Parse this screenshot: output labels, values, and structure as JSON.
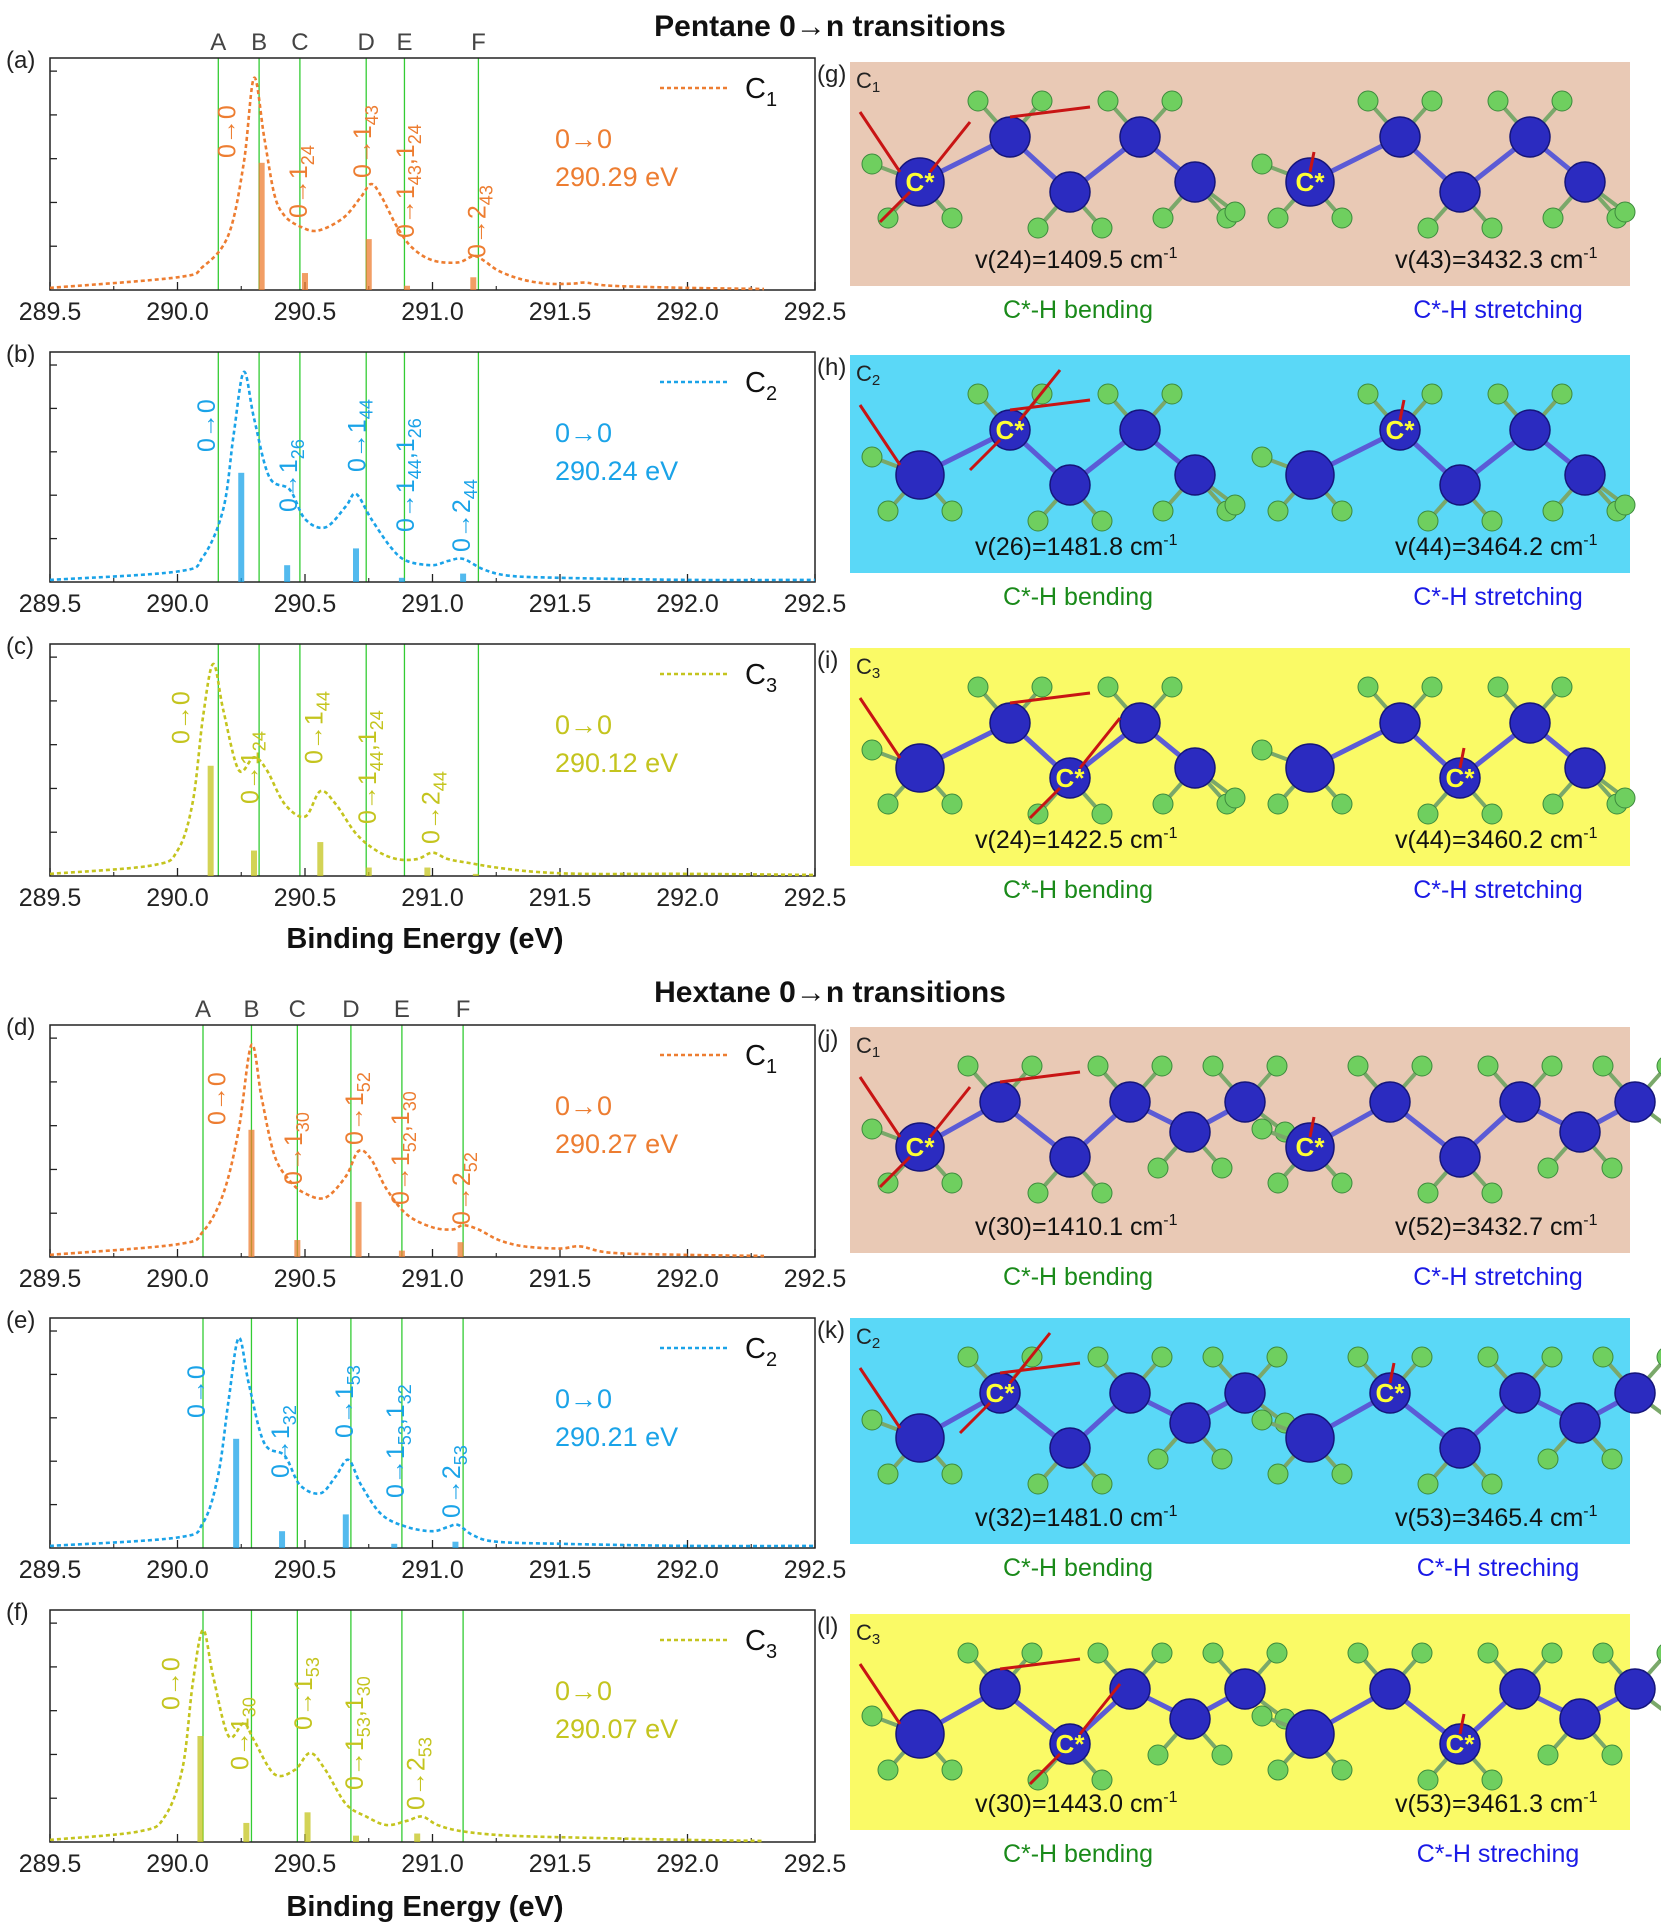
{
  "figure": {
    "pentane_title": "Pentane 0→n transitions",
    "hexane_title": "Hextane 0→n transitions",
    "xlabel": "Binding Energy (eV)",
    "line_letters": [
      "A",
      "B",
      "C",
      "D",
      "E",
      "F"
    ],
    "colors": {
      "C1": "#ed7d31",
      "C2": "#1aa3e8",
      "C3": "#c4c41e",
      "grid_line": "#33cc33",
      "bg_C1": "#e9c9b5",
      "bg_C2": "#5ad8f7",
      "bg_C3": "#fafa66",
      "bending_label": "#1a8a1a",
      "stretching_label": "#1a1ae6",
      "carbon": "#2b2bc0",
      "hydrogen": "#6fcf5f",
      "arrow": "#c81414"
    }
  },
  "chart_data": [
    {
      "type": "line",
      "panel": "(a)",
      "molecule": "Pentane",
      "site": "C1",
      "legend": {
        "main": "C",
        "sub": "1"
      },
      "xlim": [
        289.5,
        292.5
      ],
      "xticks": [
        "289.5",
        "290.0",
        "290.5",
        "291.0",
        "291.5",
        "292.0",
        "292.5"
      ],
      "peak_label": "0→0",
      "peak_energy": "290.29 eV",
      "vlines": [
        290.16,
        290.32,
        290.48,
        290.74,
        290.89,
        291.18
      ],
      "curve_x": [
        289.5,
        290.0,
        290.1,
        290.2,
        290.26,
        290.3,
        290.34,
        290.38,
        290.42,
        290.48,
        290.55,
        290.65,
        290.72,
        290.76,
        290.8,
        290.86,
        290.92,
        291.0,
        291.1,
        291.16,
        291.2,
        291.26,
        291.35,
        291.45,
        291.55,
        291.6,
        291.7,
        292.0,
        292.3
      ],
      "curve_y": [
        0.01,
        0.06,
        0.11,
        0.26,
        0.6,
        1.0,
        0.72,
        0.45,
        0.35,
        0.3,
        0.28,
        0.34,
        0.44,
        0.5,
        0.44,
        0.3,
        0.2,
        0.14,
        0.13,
        0.16,
        0.14,
        0.09,
        0.05,
        0.03,
        0.03,
        0.035,
        0.02,
        0.01,
        0.005
      ],
      "sticks": [
        {
          "x": 290.33,
          "h": 0.6
        },
        {
          "x": 290.5,
          "h": 0.08
        },
        {
          "x": 290.75,
          "h": 0.24
        },
        {
          "x": 290.9,
          "h": 0.02
        },
        {
          "x": 291.16,
          "h": 0.06
        }
      ],
      "labels": [
        {
          "x": 290.22,
          "text": "0→0",
          "base": "0→0",
          "sub": "",
          "tail": ""
        },
        {
          "x": 290.5,
          "text": "0→1_24",
          "base": "0→1",
          "sub": "24",
          "tail": ""
        },
        {
          "x": 290.75,
          "text": "0→1_43",
          "base": "0→1",
          "sub": "43",
          "tail": ""
        },
        {
          "x": 290.92,
          "text": "0→1_43,1_24",
          "base": "0→1",
          "sub": "43",
          "tail": ",1",
          "sub2": "24"
        },
        {
          "x": 291.2,
          "text": "0→2_43",
          "base": "0→2",
          "sub": "43",
          "tail": ""
        }
      ]
    },
    {
      "type": "line",
      "panel": "(b)",
      "molecule": "Pentane",
      "site": "C2",
      "legend": {
        "main": "C",
        "sub": "2"
      },
      "xlim": [
        289.5,
        292.5
      ],
      "xticks": [
        "289.5",
        "290.0",
        "290.5",
        "291.0",
        "291.5",
        "292.0",
        "292.5"
      ],
      "peak_label": "0→0",
      "peak_energy": "290.24 eV",
      "vlines": [
        290.16,
        290.32,
        290.48,
        290.74,
        290.89,
        291.18
      ],
      "curve_x": [
        289.5,
        290.0,
        290.1,
        290.18,
        290.22,
        290.26,
        290.3,
        290.36,
        290.44,
        290.5,
        290.58,
        290.66,
        290.7,
        290.76,
        290.84,
        290.9,
        291.0,
        291.06,
        291.12,
        291.2,
        291.3,
        291.5,
        292.0,
        292.5
      ],
      "curve_y": [
        0.01,
        0.05,
        0.12,
        0.35,
        0.7,
        1.0,
        0.78,
        0.5,
        0.44,
        0.3,
        0.26,
        0.36,
        0.42,
        0.3,
        0.16,
        0.1,
        0.08,
        0.1,
        0.11,
        0.06,
        0.03,
        0.02,
        0.01,
        0.01
      ],
      "sticks": [
        {
          "x": 290.25,
          "h": 0.52
        },
        {
          "x": 290.43,
          "h": 0.08
        },
        {
          "x": 290.7,
          "h": 0.16
        },
        {
          "x": 290.88,
          "h": 0.02
        },
        {
          "x": 291.12,
          "h": 0.04
        }
      ],
      "labels": [
        {
          "x": 290.14,
          "text": "0→0",
          "base": "0→0",
          "sub": "",
          "tail": ""
        },
        {
          "x": 290.46,
          "text": "0→1_26",
          "base": "0→1",
          "sub": "26",
          "tail": ""
        },
        {
          "x": 290.73,
          "text": "0→1_44",
          "base": "0→1",
          "sub": "44",
          "tail": ""
        },
        {
          "x": 290.92,
          "text": "0→1_44,1_26",
          "base": "0→1",
          "sub": "44",
          "tail": ",1",
          "sub2": "26"
        },
        {
          "x": 291.14,
          "text": "0→2_44",
          "base": "0→2",
          "sub": "44",
          "tail": ""
        }
      ]
    },
    {
      "type": "line",
      "panel": "(c)",
      "molecule": "Pentane",
      "site": "C3",
      "legend": {
        "main": "C",
        "sub": "3"
      },
      "xlim": [
        289.5,
        292.5
      ],
      "xticks": [
        "289.5",
        "290.0",
        "290.5",
        "291.0",
        "291.5",
        "292.0",
        "292.5"
      ],
      "peak_label": "0→0",
      "peak_energy": "290.12 eV",
      "vlines": [
        290.16,
        290.32,
        290.48,
        290.74,
        290.89,
        291.18
      ],
      "curve_x": [
        289.5,
        289.9,
        290.0,
        290.06,
        290.1,
        290.14,
        290.18,
        290.24,
        290.3,
        290.35,
        290.42,
        290.5,
        290.56,
        290.62,
        290.7,
        290.78,
        290.86,
        290.94,
        291.0,
        291.06,
        291.15,
        291.25,
        291.4,
        291.6,
        292.0,
        292.5
      ],
      "curve_y": [
        0.01,
        0.05,
        0.12,
        0.35,
        0.75,
        1.0,
        0.78,
        0.5,
        0.56,
        0.5,
        0.34,
        0.28,
        0.4,
        0.34,
        0.2,
        0.12,
        0.08,
        0.08,
        0.11,
        0.08,
        0.06,
        0.04,
        0.02,
        0.01,
        0.01,
        0.005
      ],
      "sticks": [
        {
          "x": 290.13,
          "h": 0.52
        },
        {
          "x": 290.3,
          "h": 0.12
        },
        {
          "x": 290.56,
          "h": 0.16
        },
        {
          "x": 290.75,
          "h": 0.04
        },
        {
          "x": 290.98,
          "h": 0.04
        },
        {
          "x": 291.17,
          "h": 0.01
        }
      ],
      "labels": [
        {
          "x": 290.04,
          "text": "0→0",
          "base": "0→0",
          "sub": "",
          "tail": ""
        },
        {
          "x": 290.31,
          "text": "0→1_24",
          "base": "0→1",
          "sub": "24",
          "tail": ""
        },
        {
          "x": 290.56,
          "text": "0→1_44",
          "base": "0→1",
          "sub": "44",
          "tail": ""
        },
        {
          "x": 290.77,
          "text": "0→1_44,1_24",
          "base": "0→1",
          "sub": "44",
          "tail": ",1",
          "sub2": "24"
        },
        {
          "x": 291.02,
          "text": "0→2_44",
          "base": "0→2",
          "sub": "44",
          "tail": ""
        }
      ]
    },
    {
      "type": "line",
      "panel": "(d)",
      "molecule": "Hextane",
      "site": "C1",
      "legend": {
        "main": "C",
        "sub": "1"
      },
      "xlim": [
        289.5,
        292.5
      ],
      "xticks": [
        "289.5",
        "290.0",
        "290.5",
        "291.0",
        "291.5",
        "292.0",
        "292.5"
      ],
      "peak_label": "0→0",
      "peak_energy": "290.27 eV",
      "vlines": [
        290.1,
        290.29,
        290.47,
        290.68,
        290.88,
        291.12
      ],
      "curve_x": [
        289.5,
        290.0,
        290.1,
        290.18,
        290.24,
        290.29,
        290.33,
        290.38,
        290.44,
        290.5,
        290.58,
        290.66,
        290.71,
        290.76,
        290.82,
        290.9,
        291.0,
        291.08,
        291.12,
        291.18,
        291.26,
        291.36,
        291.5,
        291.58,
        291.7,
        292.0,
        292.3
      ],
      "curve_y": [
        0.01,
        0.06,
        0.12,
        0.3,
        0.6,
        1.0,
        0.75,
        0.48,
        0.36,
        0.3,
        0.28,
        0.38,
        0.5,
        0.46,
        0.32,
        0.2,
        0.14,
        0.13,
        0.15,
        0.13,
        0.08,
        0.05,
        0.04,
        0.05,
        0.02,
        0.01,
        0.005
      ],
      "sticks": [
        {
          "x": 290.29,
          "h": 0.6
        },
        {
          "x": 290.47,
          "h": 0.08
        },
        {
          "x": 290.71,
          "h": 0.26
        },
        {
          "x": 290.88,
          "h": 0.03
        },
        {
          "x": 291.11,
          "h": 0.07
        }
      ],
      "labels": [
        {
          "x": 290.18,
          "text": "0→0",
          "base": "0→0",
          "sub": "",
          "tail": ""
        },
        {
          "x": 290.48,
          "text": "0→1_30",
          "base": "0→1",
          "sub": "30",
          "tail": ""
        },
        {
          "x": 290.72,
          "text": "0→1_52",
          "base": "0→1",
          "sub": "52",
          "tail": ""
        },
        {
          "x": 290.9,
          "text": "0→1_52,1_30",
          "base": "0→1",
          "sub": "52",
          "tail": ",1",
          "sub2": "30"
        },
        {
          "x": 291.14,
          "text": "0→2_52",
          "base": "0→2",
          "sub": "52",
          "tail": ""
        }
      ]
    },
    {
      "type": "line",
      "panel": "(e)",
      "molecule": "Hextane",
      "site": "C2",
      "legend": {
        "main": "C",
        "sub": "2"
      },
      "xlim": [
        289.5,
        292.5
      ],
      "xticks": [
        "289.5",
        "290.0",
        "290.5",
        "291.0",
        "291.5",
        "292.0",
        "292.5"
      ],
      "peak_label": "0→0",
      "peak_energy": "290.21 eV",
      "vlines": [
        290.1,
        290.29,
        290.47,
        290.68,
        290.88,
        291.12
      ],
      "curve_x": [
        289.5,
        290.0,
        290.1,
        290.16,
        290.2,
        290.24,
        290.28,
        290.34,
        290.42,
        290.48,
        290.56,
        290.62,
        290.67,
        290.72,
        290.8,
        290.9,
        291.0,
        291.06,
        291.1,
        291.16,
        291.25,
        291.5,
        292.0,
        292.5
      ],
      "curve_y": [
        0.01,
        0.05,
        0.12,
        0.35,
        0.7,
        1.0,
        0.78,
        0.5,
        0.44,
        0.3,
        0.26,
        0.34,
        0.42,
        0.3,
        0.16,
        0.1,
        0.08,
        0.1,
        0.11,
        0.06,
        0.03,
        0.02,
        0.01,
        0.01
      ],
      "sticks": [
        {
          "x": 290.23,
          "h": 0.52
        },
        {
          "x": 290.41,
          "h": 0.08
        },
        {
          "x": 290.66,
          "h": 0.16
        },
        {
          "x": 290.85,
          "h": 0.02
        },
        {
          "x": 291.09,
          "h": 0.03
        }
      ],
      "labels": [
        {
          "x": 290.1,
          "text": "0→0",
          "base": "0→0",
          "sub": "",
          "tail": ""
        },
        {
          "x": 290.43,
          "text": "0→1_32",
          "base": "0→1",
          "sub": "32",
          "tail": ""
        },
        {
          "x": 290.68,
          "text": "0→1_53",
          "base": "0→1",
          "sub": "53",
          "tail": ""
        },
        {
          "x": 290.88,
          "text": "0→1_53,1_32",
          "base": "0→1",
          "sub": "53",
          "tail": ",1",
          "sub2": "32"
        },
        {
          "x": 291.1,
          "text": "0→2_53",
          "base": "0→2",
          "sub": "53",
          "tail": ""
        }
      ]
    },
    {
      "type": "line",
      "panel": "(f)",
      "molecule": "Hextane",
      "site": "C3",
      "legend": {
        "main": "C",
        "sub": "3"
      },
      "xlim": [
        289.5,
        292.5
      ],
      "xticks": [
        "289.5",
        "290.0",
        "290.5",
        "291.0",
        "291.5",
        "292.0",
        "292.5"
      ],
      "peak_label": "0→0",
      "peak_energy": "290.07 eV",
      "vlines": [
        290.1,
        290.29,
        290.47,
        290.68,
        290.88,
        291.12
      ],
      "curve_x": [
        289.5,
        289.85,
        289.95,
        290.02,
        290.06,
        290.1,
        290.14,
        290.2,
        290.26,
        290.3,
        290.38,
        290.46,
        290.52,
        290.58,
        290.66,
        290.74,
        290.82,
        290.9,
        290.96,
        291.02,
        291.12,
        291.3,
        291.6,
        292.0,
        292.3
      ],
      "curve_y": [
        0.01,
        0.05,
        0.12,
        0.35,
        0.75,
        1.0,
        0.78,
        0.5,
        0.56,
        0.48,
        0.32,
        0.34,
        0.42,
        0.34,
        0.18,
        0.12,
        0.08,
        0.1,
        0.12,
        0.08,
        0.05,
        0.03,
        0.02,
        0.01,
        0.005
      ],
      "sticks": [
        {
          "x": 290.09,
          "h": 0.5
        },
        {
          "x": 290.27,
          "h": 0.09
        },
        {
          "x": 290.51,
          "h": 0.14
        },
        {
          "x": 290.7,
          "h": 0.03
        },
        {
          "x": 290.94,
          "h": 0.04
        }
      ],
      "labels": [
        {
          "x": 290.0,
          "text": "0→0",
          "base": "0→0",
          "sub": "",
          "tail": ""
        },
        {
          "x": 290.27,
          "text": "0→1_30",
          "base": "0→1",
          "sub": "30",
          "tail": ""
        },
        {
          "x": 290.52,
          "text": "0→1_53",
          "base": "0→1",
          "sub": "53",
          "tail": ""
        },
        {
          "x": 290.72,
          "text": "0→1_53,1_30",
          "base": "0→1",
          "sub": "53",
          "tail": ",1",
          "sub2": "30"
        },
        {
          "x": 290.96,
          "text": "0→2_53",
          "base": "0→2",
          "sub": "53",
          "tail": ""
        }
      ]
    }
  ],
  "mode_panels": [
    {
      "panel": "(g)",
      "site": "C1",
      "site_main": "C",
      "site_sub": "1",
      "bg": "C1",
      "left_mode": "v(24)=1409.5 cm",
      "left_unit_sup": "-1",
      "right_mode": "v(43)=3432.3 cm",
      "right_unit_sup": "-1",
      "left_label": "C*-H bending",
      "right_label": "C*-H stretching",
      "chain": "pentane",
      "star": 0
    },
    {
      "panel": "(h)",
      "site": "C2",
      "site_main": "C",
      "site_sub": "2",
      "bg": "C2",
      "left_mode": "v(26)=1481.8 cm",
      "left_unit_sup": "-1",
      "right_mode": "v(44)=3464.2 cm",
      "right_unit_sup": "-1",
      "left_label": "C*-H bending",
      "right_label": "C*-H stretching",
      "chain": "pentane",
      "star": 1
    },
    {
      "panel": "(i)",
      "site": "C3",
      "site_main": "C",
      "site_sub": "3",
      "bg": "C3",
      "left_mode": "v(24)=1422.5 cm",
      "left_unit_sup": "-1",
      "right_mode": "v(44)=3460.2 cm",
      "right_unit_sup": "-1",
      "left_label": "C*-H bending",
      "right_label": "C*-H stretching",
      "chain": "pentane",
      "star": 2
    },
    {
      "panel": "(j)",
      "site": "C1",
      "site_main": "C",
      "site_sub": "1",
      "bg": "C1",
      "left_mode": "v(30)=1410.1 cm",
      "left_unit_sup": "-1",
      "right_mode": "v(52)=3432.7 cm",
      "right_unit_sup": "-1",
      "left_label": "C*-H bending",
      "right_label": "C*-H stretching",
      "chain": "hexane",
      "star": 0
    },
    {
      "panel": "(k)",
      "site": "C2",
      "site_main": "C",
      "site_sub": "2",
      "bg": "C2",
      "left_mode": "v(32)=1481.0 cm",
      "left_unit_sup": "-1",
      "right_mode": "v(53)=3465.4 cm",
      "right_unit_sup": "-1",
      "left_label": "C*-H bending",
      "right_label": "C*-H streching",
      "chain": "hexane",
      "star": 1
    },
    {
      "panel": "(l)",
      "site": "C3",
      "site_main": "C",
      "site_sub": "3",
      "bg": "C3",
      "left_mode": "v(30)=1443.0 cm",
      "left_unit_sup": "-1",
      "right_mode": "v(53)=3461.3 cm",
      "right_unit_sup": "-1",
      "left_label": "C*-H bending",
      "right_label": "C*-H streching",
      "chain": "hexane",
      "star": 2
    }
  ]
}
